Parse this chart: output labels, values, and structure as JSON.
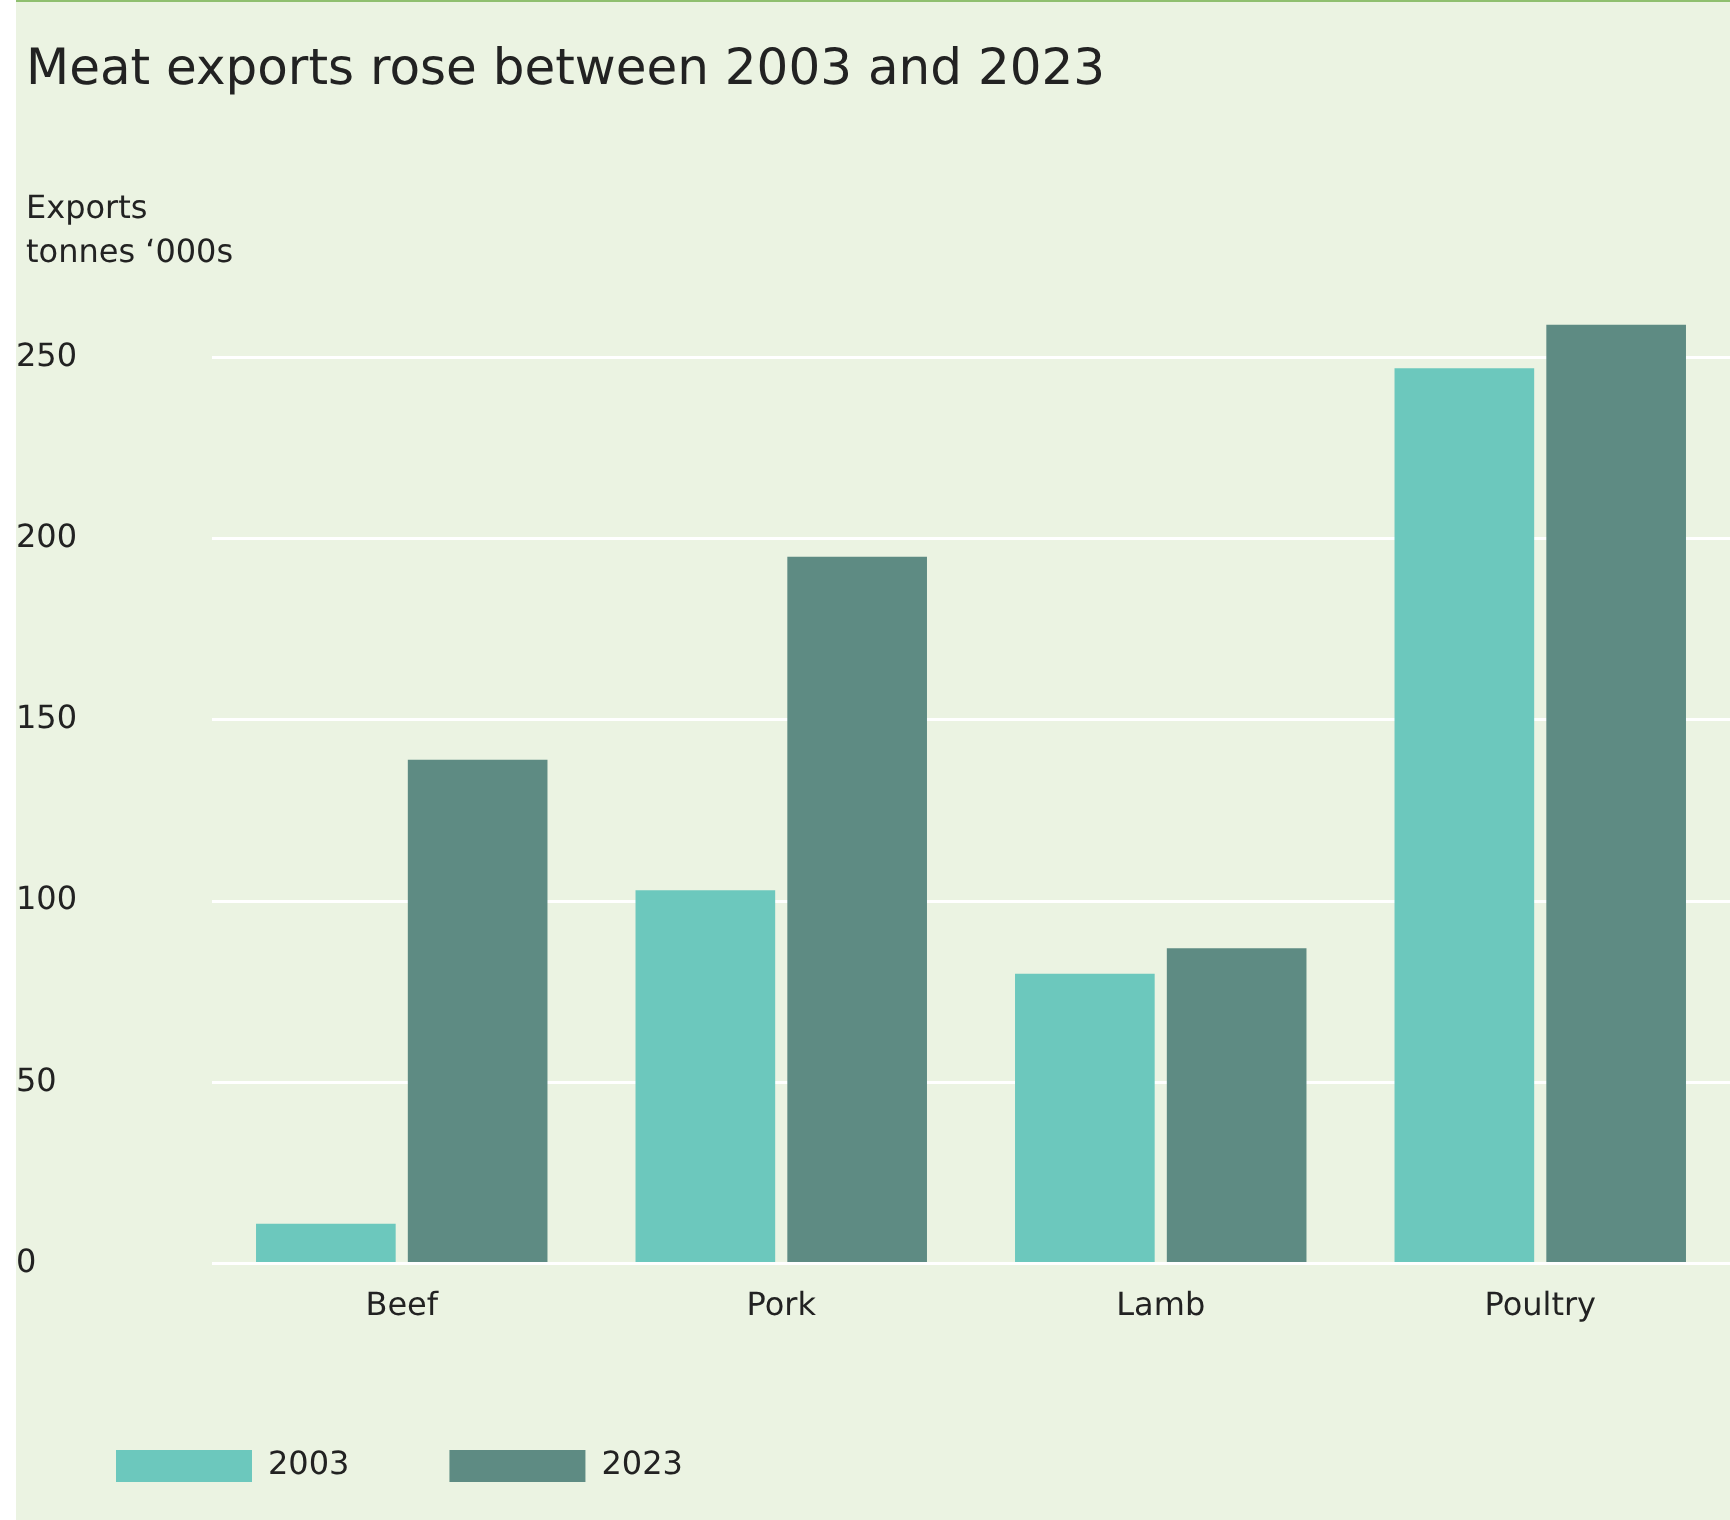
{
  "chart_data": {
    "type": "bar",
    "title": "Meat exports rose between 2003 and 2023",
    "ylabel": "Exports\ntonnes ‘000s",
    "categories": [
      "Beef",
      "Pork",
      "Lamb",
      "Poultry"
    ],
    "series": [
      {
        "name": "2003",
        "color": "#6cc8bd",
        "values": [
          11,
          103,
          80,
          247
        ]
      },
      {
        "name": "2023",
        "color": "#5e8b83",
        "values": [
          139,
          195,
          87,
          259
        ]
      }
    ],
    "ylim": [
      0,
      260
    ],
    "yticks": [
      0,
      50,
      100,
      150,
      200,
      250
    ],
    "grid": "y",
    "legend": "bottom"
  }
}
